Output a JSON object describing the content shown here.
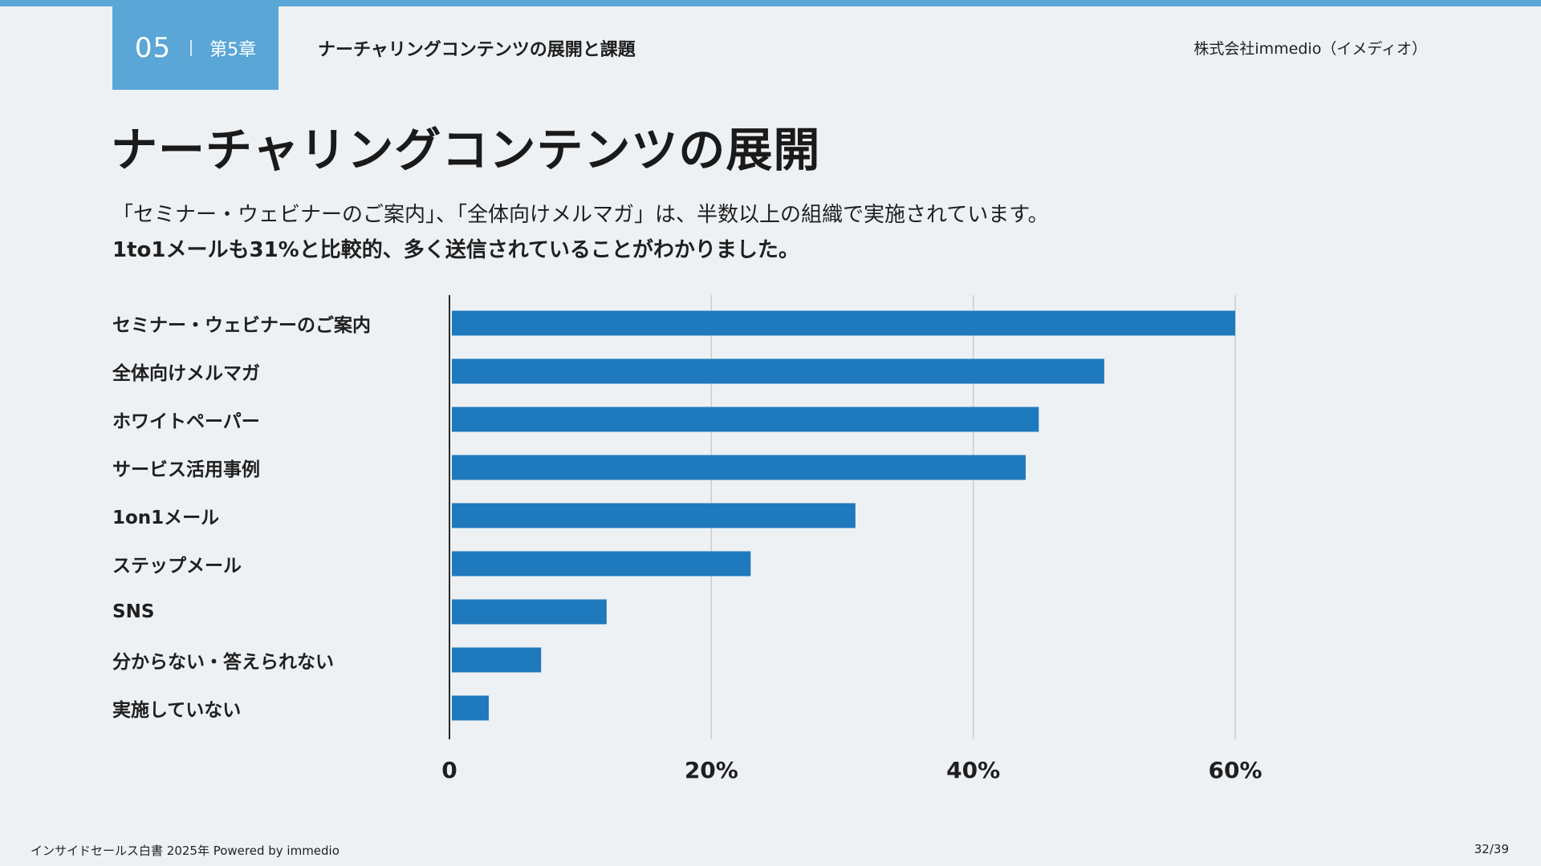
{
  "header": {
    "chapter_number": "05",
    "chapter_label": "第5章",
    "chapter_title": "ナーチャリングコンテンツの展開と課題",
    "company": "株式会社immedio（イメディオ）"
  },
  "page_title": "ナーチャリングコンテンツの展開",
  "subtitle": {
    "line1": "「セミナー・ウェビナーのご案内」、「全体向けメルマガ」は、半数以上の組織で実施されています。",
    "line2": "1to1メールも31%と比較的、多く送信されていることがわかりました。"
  },
  "chart_data": {
    "type": "bar",
    "orientation": "horizontal",
    "categories": [
      "セミナー・ウェビナーのご案内",
      "全体向けメルマガ",
      "ホワイトペーパー",
      "サービス活用事例",
      "1on1メール",
      "ステップメール",
      "SNS",
      "分からない・答えられない",
      "実施していない"
    ],
    "values": [
      60,
      50,
      45,
      44,
      31,
      23,
      12,
      7,
      3
    ],
    "unit": "%",
    "xlim": [
      0,
      60
    ],
    "xticks": [
      0,
      20,
      40,
      60
    ],
    "xtick_labels": [
      "0",
      "20%",
      "40%",
      "60%"
    ],
    "grid": true,
    "bar_color": "#1e79bd",
    "title": "",
    "xlabel": "",
    "ylabel": ""
  },
  "footer": {
    "left": "インサイドセールス白書 2025年 Powered by immedio",
    "page": "32/39"
  },
  "colors": {
    "accent": "#5aa6d6",
    "bar": "#1e79bd",
    "background": "#eef1f4"
  }
}
